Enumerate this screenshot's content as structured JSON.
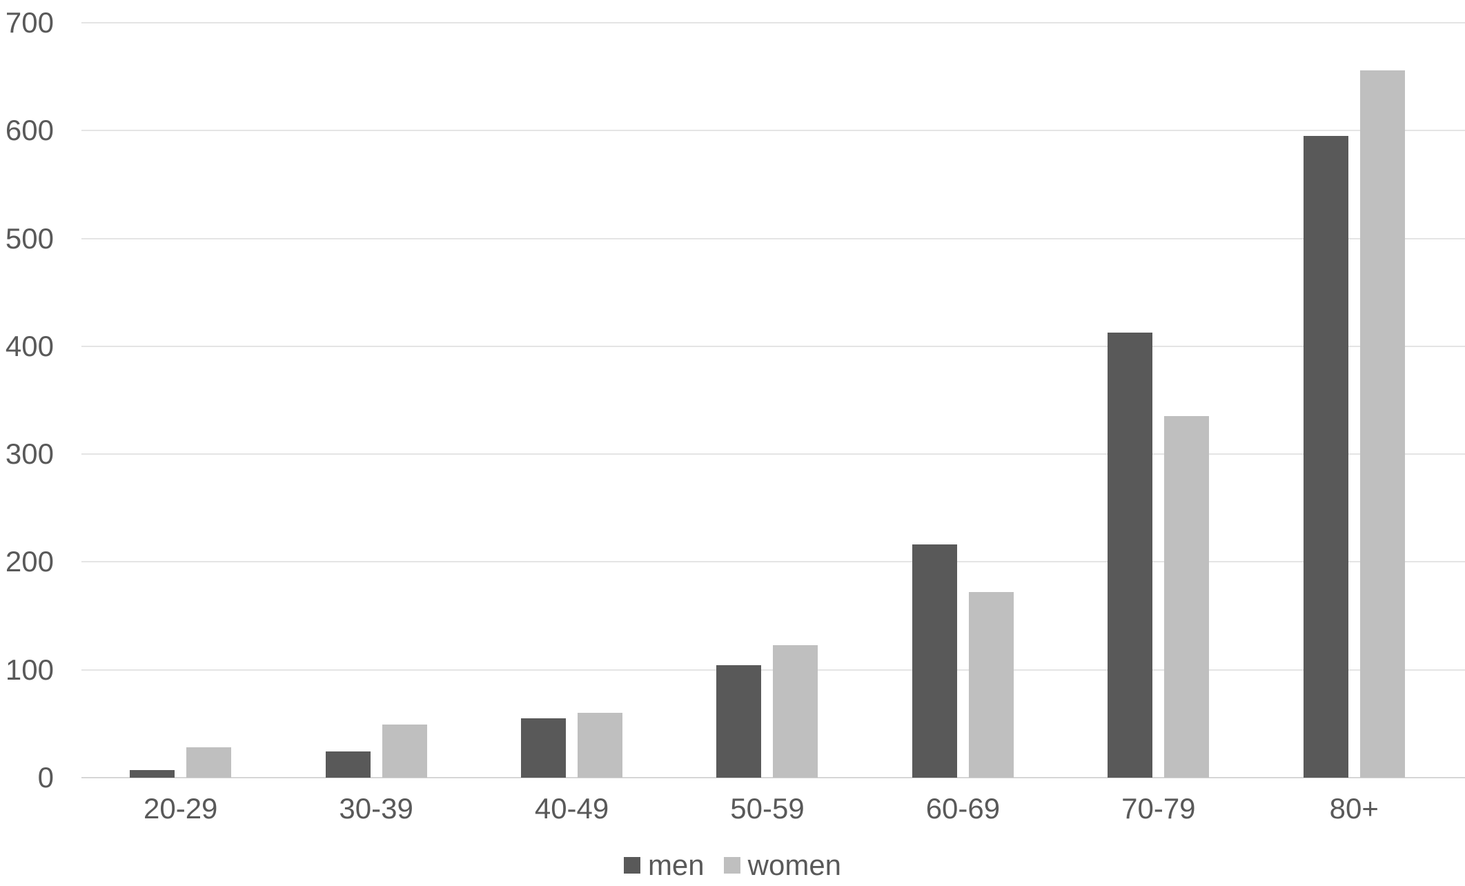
{
  "chart_data": {
    "type": "bar",
    "title": "",
    "xlabel": "",
    "ylabel": "",
    "categories": [
      "20-29",
      "30-39",
      "40-49",
      "50-59",
      "60-69",
      "70-79",
      "80+"
    ],
    "series": [
      {
        "name": "men",
        "color": "#595959",
        "values": [
          7,
          24,
          55,
          104,
          216,
          413,
          595
        ]
      },
      {
        "name": "women",
        "color": "#bfbfbf",
        "values": [
          28,
          49,
          60,
          123,
          172,
          335,
          656
        ]
      }
    ],
    "ylim": [
      0,
      700
    ],
    "y_ticks": [
      0,
      100,
      200,
      300,
      400,
      500,
      600,
      700
    ],
    "grid": "horizontal gridlines, no vertical axis line",
    "legend_position": "bottom-center",
    "styles": {
      "background": "#ffffff",
      "gridline_color": "#e4e4e4",
      "baseline_color": "#d6d6d6",
      "tick_label_color": "#595959"
    }
  }
}
